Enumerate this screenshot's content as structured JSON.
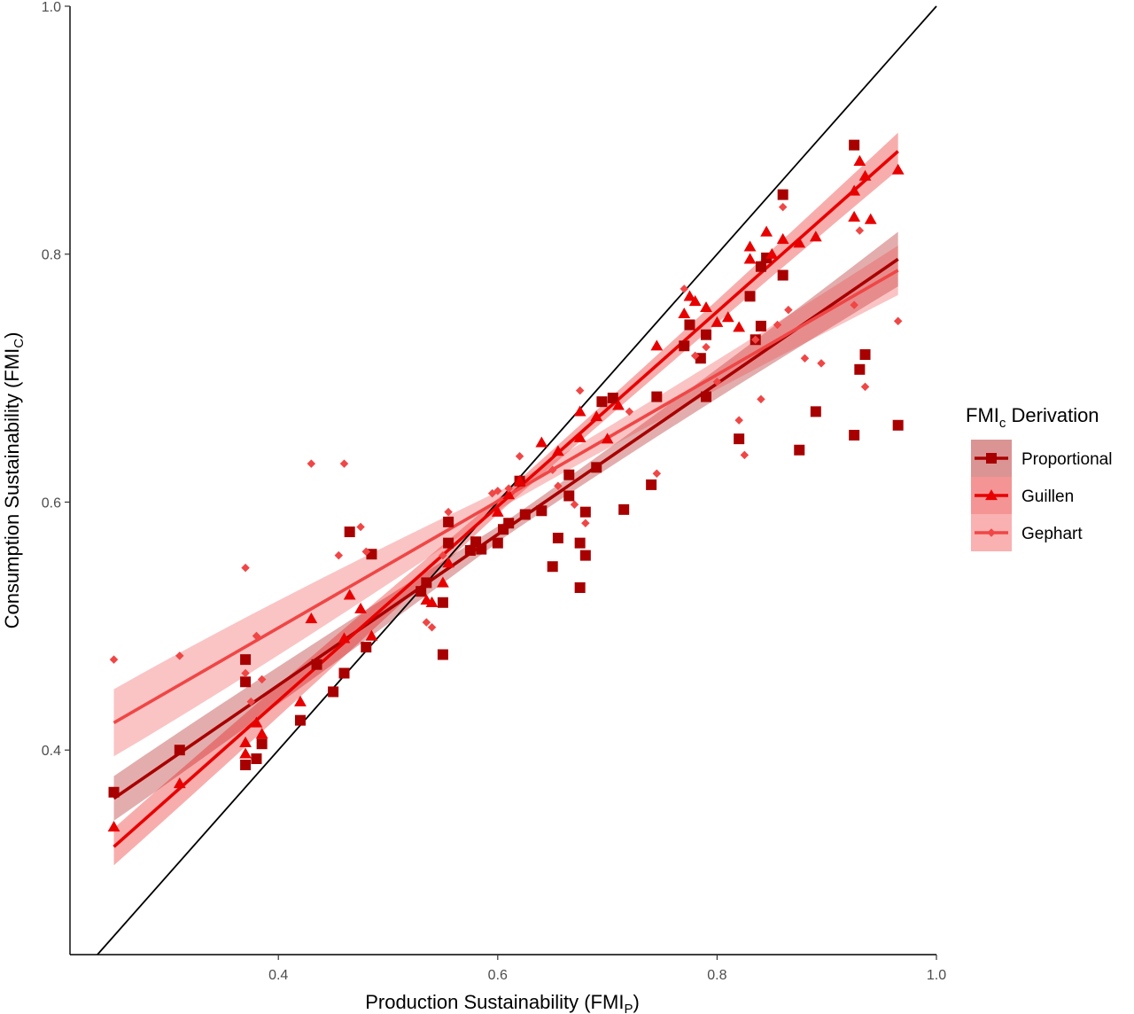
{
  "chart_data": {
    "type": "scatter",
    "xlabel": "Production Sustainability (FMI",
    "xlabel_sub": "P",
    "xlabel_end": ")",
    "ylabel": "Consumption Sustainability (FMI",
    "ylabel_sub": "C",
    "ylabel_end": ")",
    "xlim": [
      0.21,
      1.0
    ],
    "ylim": [
      0.235,
      1.0
    ],
    "x_ticks": [
      0.4,
      0.6,
      0.8,
      1.0
    ],
    "x_tick_labels": [
      "0.4",
      "0.6",
      "0.8",
      "1.0"
    ],
    "y_ticks": [
      0.4,
      0.6,
      0.8,
      1.0
    ],
    "y_tick_labels": [
      "0.4",
      "0.6",
      "0.8",
      "1.0"
    ],
    "grid": false,
    "reference_line": "y = x",
    "legend": {
      "title": "FMI",
      "title_sub": "c",
      "title_end": " Derivation",
      "placement": "right"
    },
    "series": [
      {
        "name": "Proportional",
        "marker": "square",
        "color": "#a80000",
        "fit": {
          "x0": 0.25,
          "y0": 0.361,
          "x1": 0.965,
          "y1": 0.796,
          "band_half_width": [
            0.018,
            0.006,
            0.022
          ]
        },
        "points": [
          [
            0.25,
            0.366
          ],
          [
            0.31,
            0.4
          ],
          [
            0.37,
            0.473
          ],
          [
            0.37,
            0.455
          ],
          [
            0.37,
            0.388
          ],
          [
            0.38,
            0.393
          ],
          [
            0.385,
            0.405
          ],
          [
            0.42,
            0.424
          ],
          [
            0.435,
            0.469
          ],
          [
            0.45,
            0.447
          ],
          [
            0.46,
            0.462
          ],
          [
            0.465,
            0.576
          ],
          [
            0.48,
            0.483
          ],
          [
            0.485,
            0.558
          ],
          [
            0.53,
            0.528
          ],
          [
            0.535,
            0.535
          ],
          [
            0.55,
            0.477
          ],
          [
            0.55,
            0.519
          ],
          [
            0.555,
            0.567
          ],
          [
            0.555,
            0.584
          ],
          [
            0.575,
            0.561
          ],
          [
            0.58,
            0.568
          ],
          [
            0.585,
            0.562
          ],
          [
            0.6,
            0.567
          ],
          [
            0.605,
            0.578
          ],
          [
            0.61,
            0.583
          ],
          [
            0.62,
            0.617
          ],
          [
            0.625,
            0.59
          ],
          [
            0.64,
            0.593
          ],
          [
            0.65,
            0.548
          ],
          [
            0.655,
            0.571
          ],
          [
            0.665,
            0.605
          ],
          [
            0.665,
            0.622
          ],
          [
            0.675,
            0.531
          ],
          [
            0.675,
            0.567
          ],
          [
            0.68,
            0.557
          ],
          [
            0.68,
            0.592
          ],
          [
            0.69,
            0.628
          ],
          [
            0.695,
            0.681
          ],
          [
            0.705,
            0.684
          ],
          [
            0.715,
            0.594
          ],
          [
            0.74,
            0.614
          ],
          [
            0.745,
            0.685
          ],
          [
            0.77,
            0.726
          ],
          [
            0.775,
            0.743
          ],
          [
            0.785,
            0.716
          ],
          [
            0.79,
            0.735
          ],
          [
            0.79,
            0.685
          ],
          [
            0.82,
            0.651
          ],
          [
            0.83,
            0.766
          ],
          [
            0.835,
            0.731
          ],
          [
            0.84,
            0.742
          ],
          [
            0.84,
            0.79
          ],
          [
            0.845,
            0.797
          ],
          [
            0.86,
            0.783
          ],
          [
            0.86,
            0.848
          ],
          [
            0.875,
            0.642
          ],
          [
            0.89,
            0.673
          ],
          [
            0.925,
            0.654
          ],
          [
            0.925,
            0.888
          ],
          [
            0.93,
            0.707
          ],
          [
            0.935,
            0.719
          ],
          [
            0.965,
            0.662
          ]
        ]
      },
      {
        "name": "Guillen",
        "marker": "triangle",
        "color": "#e80000",
        "fit": {
          "x0": 0.25,
          "y0": 0.322,
          "x1": 0.965,
          "y1": 0.883,
          "band_half_width": [
            0.015,
            0.006,
            0.015
          ]
        },
        "points": [
          [
            0.25,
            0.338
          ],
          [
            0.31,
            0.373
          ],
          [
            0.37,
            0.406
          ],
          [
            0.37,
            0.397
          ],
          [
            0.38,
            0.422
          ],
          [
            0.385,
            0.413
          ],
          [
            0.42,
            0.439
          ],
          [
            0.43,
            0.506
          ],
          [
            0.46,
            0.49
          ],
          [
            0.465,
            0.525
          ],
          [
            0.475,
            0.514
          ],
          [
            0.485,
            0.492
          ],
          [
            0.535,
            0.521
          ],
          [
            0.54,
            0.519
          ],
          [
            0.55,
            0.535
          ],
          [
            0.555,
            0.551
          ],
          [
            0.6,
            0.592
          ],
          [
            0.61,
            0.606
          ],
          [
            0.62,
            0.617
          ],
          [
            0.64,
            0.648
          ],
          [
            0.655,
            0.641
          ],
          [
            0.675,
            0.652
          ],
          [
            0.675,
            0.673
          ],
          [
            0.69,
            0.669
          ],
          [
            0.7,
            0.651
          ],
          [
            0.71,
            0.678
          ],
          [
            0.745,
            0.726
          ],
          [
            0.77,
            0.752
          ],
          [
            0.775,
            0.766
          ],
          [
            0.78,
            0.762
          ],
          [
            0.79,
            0.757
          ],
          [
            0.8,
            0.745
          ],
          [
            0.81,
            0.749
          ],
          [
            0.82,
            0.741
          ],
          [
            0.83,
            0.796
          ],
          [
            0.83,
            0.806
          ],
          [
            0.845,
            0.818
          ],
          [
            0.85,
            0.8
          ],
          [
            0.86,
            0.812
          ],
          [
            0.875,
            0.809
          ],
          [
            0.89,
            0.814
          ],
          [
            0.925,
            0.83
          ],
          [
            0.925,
            0.851
          ],
          [
            0.93,
            0.875
          ],
          [
            0.935,
            0.863
          ],
          [
            0.94,
            0.828
          ],
          [
            0.965,
            0.868
          ]
        ]
      },
      {
        "name": "Gephart",
        "marker": "diamond",
        "color": "#f04646",
        "fit": {
          "x0": 0.25,
          "y0": 0.422,
          "x1": 0.965,
          "y1": 0.787,
          "band_half_width": [
            0.027,
            0.007,
            0.02
          ]
        },
        "points": [
          [
            0.25,
            0.473
          ],
          [
            0.31,
            0.476
          ],
          [
            0.37,
            0.547
          ],
          [
            0.37,
            0.462
          ],
          [
            0.375,
            0.439
          ],
          [
            0.38,
            0.492
          ],
          [
            0.385,
            0.457
          ],
          [
            0.43,
            0.631
          ],
          [
            0.455,
            0.557
          ],
          [
            0.46,
            0.631
          ],
          [
            0.475,
            0.58
          ],
          [
            0.48,
            0.56
          ],
          [
            0.535,
            0.503
          ],
          [
            0.54,
            0.499
          ],
          [
            0.55,
            0.557
          ],
          [
            0.555,
            0.592
          ],
          [
            0.595,
            0.607
          ],
          [
            0.6,
            0.609
          ],
          [
            0.61,
            0.611
          ],
          [
            0.62,
            0.637
          ],
          [
            0.65,
            0.626
          ],
          [
            0.655,
            0.613
          ],
          [
            0.67,
            0.598
          ],
          [
            0.675,
            0.69
          ],
          [
            0.68,
            0.583
          ],
          [
            0.72,
            0.673
          ],
          [
            0.745,
            0.623
          ],
          [
            0.77,
            0.772
          ],
          [
            0.78,
            0.718
          ],
          [
            0.79,
            0.725
          ],
          [
            0.8,
            0.697
          ],
          [
            0.82,
            0.666
          ],
          [
            0.825,
            0.638
          ],
          [
            0.835,
            0.731
          ],
          [
            0.84,
            0.683
          ],
          [
            0.855,
            0.743
          ],
          [
            0.86,
            0.838
          ],
          [
            0.865,
            0.755
          ],
          [
            0.88,
            0.716
          ],
          [
            0.895,
            0.712
          ],
          [
            0.925,
            0.759
          ],
          [
            0.93,
            0.819
          ],
          [
            0.935,
            0.693
          ],
          [
            0.965,
            0.746
          ]
        ]
      }
    ]
  }
}
